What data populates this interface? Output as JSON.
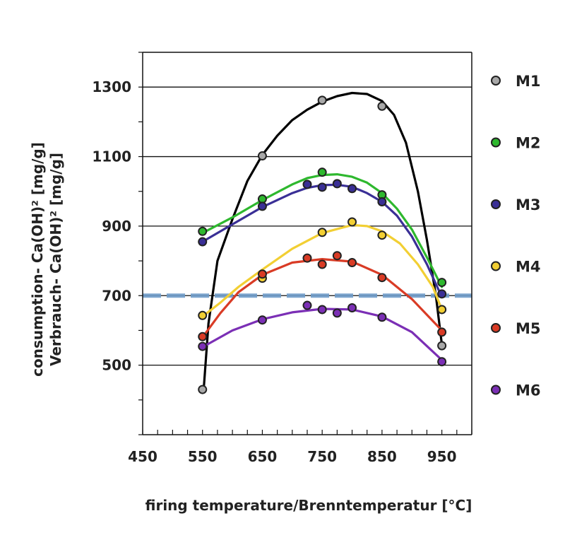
{
  "chart_data": {
    "type": "scatter",
    "xlabel": "firing temperature/Brenntemperatur [°C]",
    "ylabel_lines": [
      "consumption- Ca(OH)² [mg/g]",
      "Verbrauch- Ca(OH)² [mg/g]"
    ],
    "xlim": [
      450,
      1000
    ],
    "ylim": [
      300,
      1400
    ],
    "x_ticks": [
      450,
      550,
      650,
      750,
      850,
      950
    ],
    "y_ticks": [
      500,
      700,
      900,
      1100,
      1300
    ],
    "grid": "horizontal",
    "legend_position": "right",
    "reference_line": {
      "y": 700,
      "color": "#6f9cc9",
      "style": "dashed"
    },
    "series": [
      {
        "name": "M1",
        "color": "#a8a8a8",
        "line_color": "#000000",
        "points": [
          [
            550,
            430
          ],
          [
            650,
            1102
          ],
          [
            750,
            1262
          ],
          [
            850,
            1245
          ],
          [
            950,
            556
          ]
        ],
        "curve": [
          [
            552,
            430
          ],
          [
            560,
            620
          ],
          [
            575,
            800
          ],
          [
            600,
            920
          ],
          [
            625,
            1030
          ],
          [
            650,
            1105
          ],
          [
            675,
            1160
          ],
          [
            700,
            1205
          ],
          [
            725,
            1235
          ],
          [
            750,
            1258
          ],
          [
            775,
            1274
          ],
          [
            800,
            1283
          ],
          [
            825,
            1280
          ],
          [
            850,
            1260
          ],
          [
            870,
            1220
          ],
          [
            890,
            1140
          ],
          [
            910,
            1000
          ],
          [
            925,
            860
          ],
          [
            940,
            700
          ],
          [
            950,
            560
          ]
        ]
      },
      {
        "name": "M2",
        "color": "#2eb82e",
        "line_color": "#2eb82e",
        "points": [
          [
            550,
            885
          ],
          [
            650,
            978
          ],
          [
            750,
            1055
          ],
          [
            850,
            990
          ],
          [
            950,
            738
          ]
        ],
        "curve": [
          [
            550,
            880
          ],
          [
            600,
            925
          ],
          [
            650,
            975
          ],
          [
            700,
            1020
          ],
          [
            725,
            1038
          ],
          [
            750,
            1047
          ],
          [
            775,
            1049
          ],
          [
            800,
            1042
          ],
          [
            825,
            1025
          ],
          [
            850,
            995
          ],
          [
            875,
            950
          ],
          [
            900,
            890
          ],
          [
            925,
            810
          ],
          [
            950,
            725
          ]
        ]
      },
      {
        "name": "M3",
        "color": "#3a2f96",
        "line_color": "#3a2f96",
        "points": [
          [
            550,
            855
          ],
          [
            650,
            957
          ],
          [
            725,
            1020
          ],
          [
            750,
            1012
          ],
          [
            775,
            1022
          ],
          [
            800,
            1008
          ],
          [
            850,
            970
          ],
          [
            950,
            705
          ]
        ],
        "curve": [
          [
            550,
            855
          ],
          [
            600,
            905
          ],
          [
            650,
            955
          ],
          [
            700,
            995
          ],
          [
            725,
            1010
          ],
          [
            750,
            1018
          ],
          [
            775,
            1019
          ],
          [
            800,
            1013
          ],
          [
            825,
            995
          ],
          [
            850,
            970
          ],
          [
            875,
            930
          ],
          [
            900,
            870
          ],
          [
            925,
            790
          ],
          [
            945,
            715
          ]
        ]
      },
      {
        "name": "M4",
        "color": "#f2cf33",
        "line_color": "#f2cf33",
        "points": [
          [
            550,
            643
          ],
          [
            650,
            750
          ],
          [
            750,
            882
          ],
          [
            800,
            912
          ],
          [
            850,
            874
          ],
          [
            950,
            660
          ]
        ],
        "curve": [
          [
            550,
            640
          ],
          [
            580,
            680
          ],
          [
            610,
            725
          ],
          [
            650,
            775
          ],
          [
            700,
            835
          ],
          [
            750,
            880
          ],
          [
            800,
            903
          ],
          [
            825,
            900
          ],
          [
            850,
            885
          ],
          [
            880,
            850
          ],
          [
            910,
            790
          ],
          [
            935,
            725
          ],
          [
            950,
            660
          ]
        ]
      },
      {
        "name": "M5",
        "color": "#d93b25",
        "line_color": "#d93b25",
        "points": [
          [
            550,
            582
          ],
          [
            650,
            762
          ],
          [
            725,
            808
          ],
          [
            750,
            790
          ],
          [
            775,
            815
          ],
          [
            800,
            795
          ],
          [
            850,
            752
          ],
          [
            950,
            595
          ]
        ],
        "curve": [
          [
            550,
            580
          ],
          [
            580,
            650
          ],
          [
            610,
            710
          ],
          [
            650,
            760
          ],
          [
            700,
            795
          ],
          [
            750,
            805
          ],
          [
            800,
            798
          ],
          [
            850,
            760
          ],
          [
            900,
            690
          ],
          [
            950,
            600
          ]
        ]
      },
      {
        "name": "M6",
        "color": "#7b2fb5",
        "line_color": "#7b2fb5",
        "points": [
          [
            550,
            554
          ],
          [
            650,
            630
          ],
          [
            725,
            672
          ],
          [
            750,
            660
          ],
          [
            775,
            650
          ],
          [
            800,
            665
          ],
          [
            850,
            638
          ],
          [
            950,
            510
          ]
        ],
        "curve": [
          [
            550,
            552
          ],
          [
            600,
            600
          ],
          [
            650,
            632
          ],
          [
            700,
            652
          ],
          [
            750,
            662
          ],
          [
            800,
            660
          ],
          [
            850,
            640
          ],
          [
            900,
            595
          ],
          [
            950,
            515
          ]
        ]
      }
    ]
  }
}
